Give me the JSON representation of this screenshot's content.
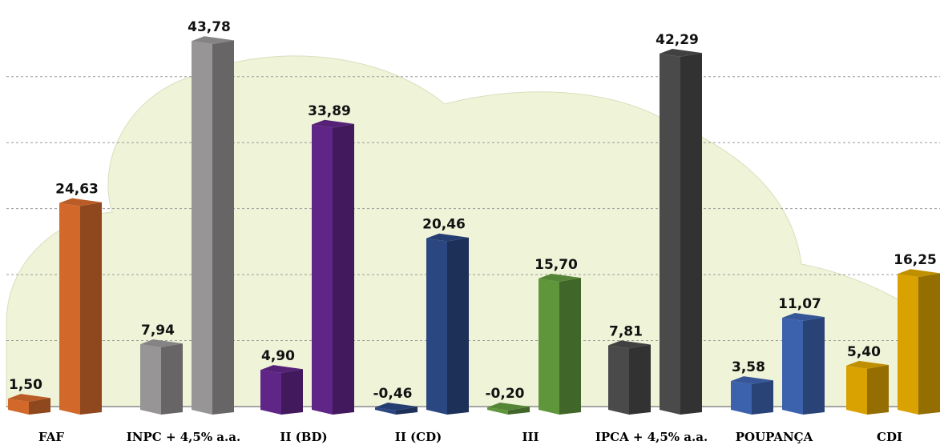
{
  "chart_data": {
    "type": "bar",
    "title": "",
    "xlabel": "",
    "ylabel": "",
    "ylim": [
      -1,
      46
    ],
    "grid": true,
    "categories": [
      "FAF",
      "INPC + 4,5% a.a.",
      "II (BD)",
      "II (CD)",
      "III",
      "IPCA + 4,5% a.a.",
      "POUPANÇA",
      "CDI"
    ],
    "bars": [
      {
        "category_index": 0,
        "position": "left",
        "value": 1.5,
        "label": "1,50",
        "color": "#d2692a"
      },
      {
        "category_index": 0,
        "position": "right",
        "value": 24.63,
        "label": "24,63",
        "color": "#d2692a"
      },
      {
        "category_index": 1,
        "position": "left",
        "value": 7.94,
        "label": "7,94",
        "color": "#979595"
      },
      {
        "category_index": 1,
        "position": "right",
        "value": 43.78,
        "label": "43,78",
        "color": "#979595"
      },
      {
        "category_index": 2,
        "position": "left",
        "value": 4.9,
        "label": "4,90",
        "color": "#5f2587"
      },
      {
        "category_index": 2,
        "position": "right",
        "value": 33.89,
        "label": "33,89",
        "color": "#5f2587"
      },
      {
        "category_index": 3,
        "position": "left",
        "value": -0.46,
        "label": "-0,46",
        "color": "#2a4781"
      },
      {
        "category_index": 3,
        "position": "right",
        "value": 20.46,
        "label": "20,46",
        "color": "#2a4781"
      },
      {
        "category_index": 4,
        "position": "left",
        "value": -0.2,
        "label": "-0,20",
        "color": "#5f963c"
      },
      {
        "category_index": 4,
        "position": "right",
        "value": 15.7,
        "label": "15,70",
        "color": "#5f963c"
      },
      {
        "category_index": 5,
        "position": "left",
        "value": 7.81,
        "label": "7,81",
        "color": "#4a4a4a"
      },
      {
        "category_index": 5,
        "position": "right",
        "value": 42.29,
        "label": "42,29",
        "color": "#4a4a4a"
      },
      {
        "category_index": 6,
        "position": "left",
        "value": 3.58,
        "label": "3,58",
        "color": "#3d62ad"
      },
      {
        "category_index": 6,
        "position": "right",
        "value": 11.07,
        "label": "11,07",
        "color": "#3d62ad"
      },
      {
        "category_index": 7,
        "position": "left",
        "value": 5.4,
        "label": "5,40",
        "color": "#d9a200"
      },
      {
        "category_index": 7,
        "position": "right",
        "value": 16.25,
        "label": "16,25",
        "color": "#d9a200"
      }
    ]
  }
}
